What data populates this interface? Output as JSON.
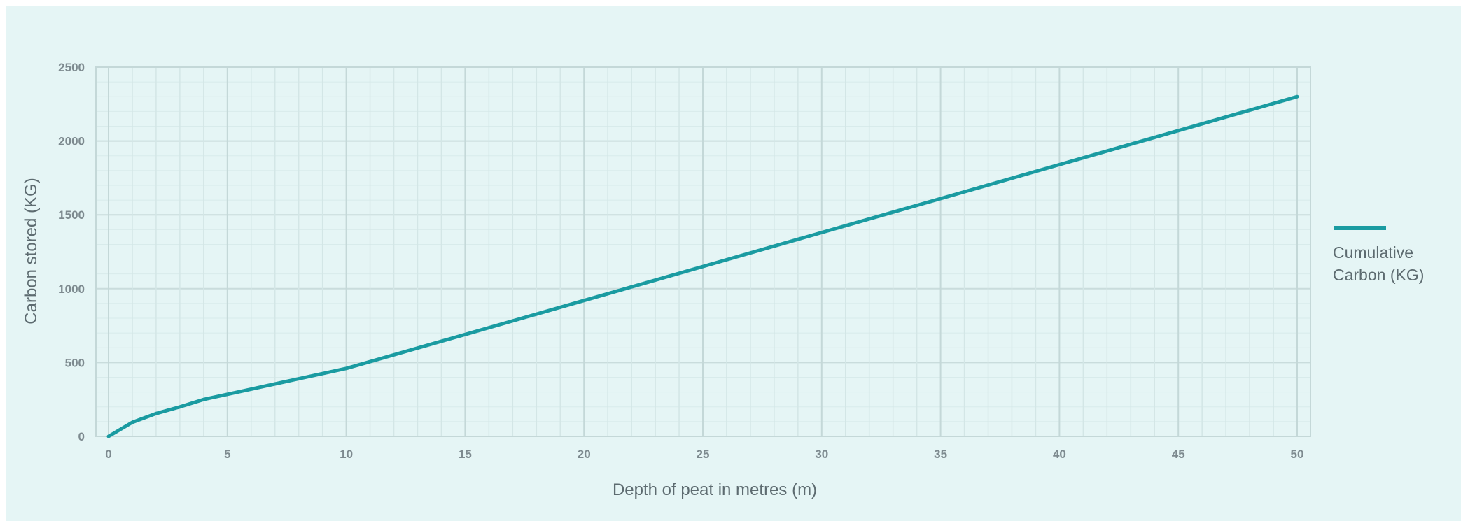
{
  "chart_data": {
    "type": "line",
    "xlabel": "Depth of peat in metres (m)",
    "ylabel": "Carbon stored (KG)",
    "xlim": [
      0,
      50
    ],
    "ylim": [
      0,
      2500
    ],
    "x_ticks": [
      "0",
      "5",
      "10",
      "15",
      "20",
      "25",
      "30",
      "35",
      "40",
      "45",
      "50"
    ],
    "y_ticks": [
      "0",
      "500",
      "1000",
      "1500",
      "2000",
      "2500"
    ],
    "grid": true,
    "legend_position": "right",
    "series": [
      {
        "name": "Cumulative Carbon (KG)",
        "color": "#1a9ba1",
        "points": [
          [
            0,
            0
          ],
          [
            1,
            95
          ],
          [
            2,
            155
          ],
          [
            3,
            200
          ],
          [
            4,
            250
          ],
          [
            5,
            285
          ],
          [
            6,
            320
          ],
          [
            7,
            355
          ],
          [
            8,
            390
          ],
          [
            9,
            425
          ],
          [
            10,
            460
          ],
          [
            15,
            690
          ],
          [
            20,
            920
          ],
          [
            25,
            1150
          ],
          [
            30,
            1380
          ],
          [
            35,
            1610
          ],
          [
            40,
            1840
          ],
          [
            45,
            2070
          ],
          [
            50,
            2300
          ]
        ]
      }
    ]
  },
  "legend": {
    "line1": "Cumulative",
    "line2": "Carbon (KG)"
  }
}
